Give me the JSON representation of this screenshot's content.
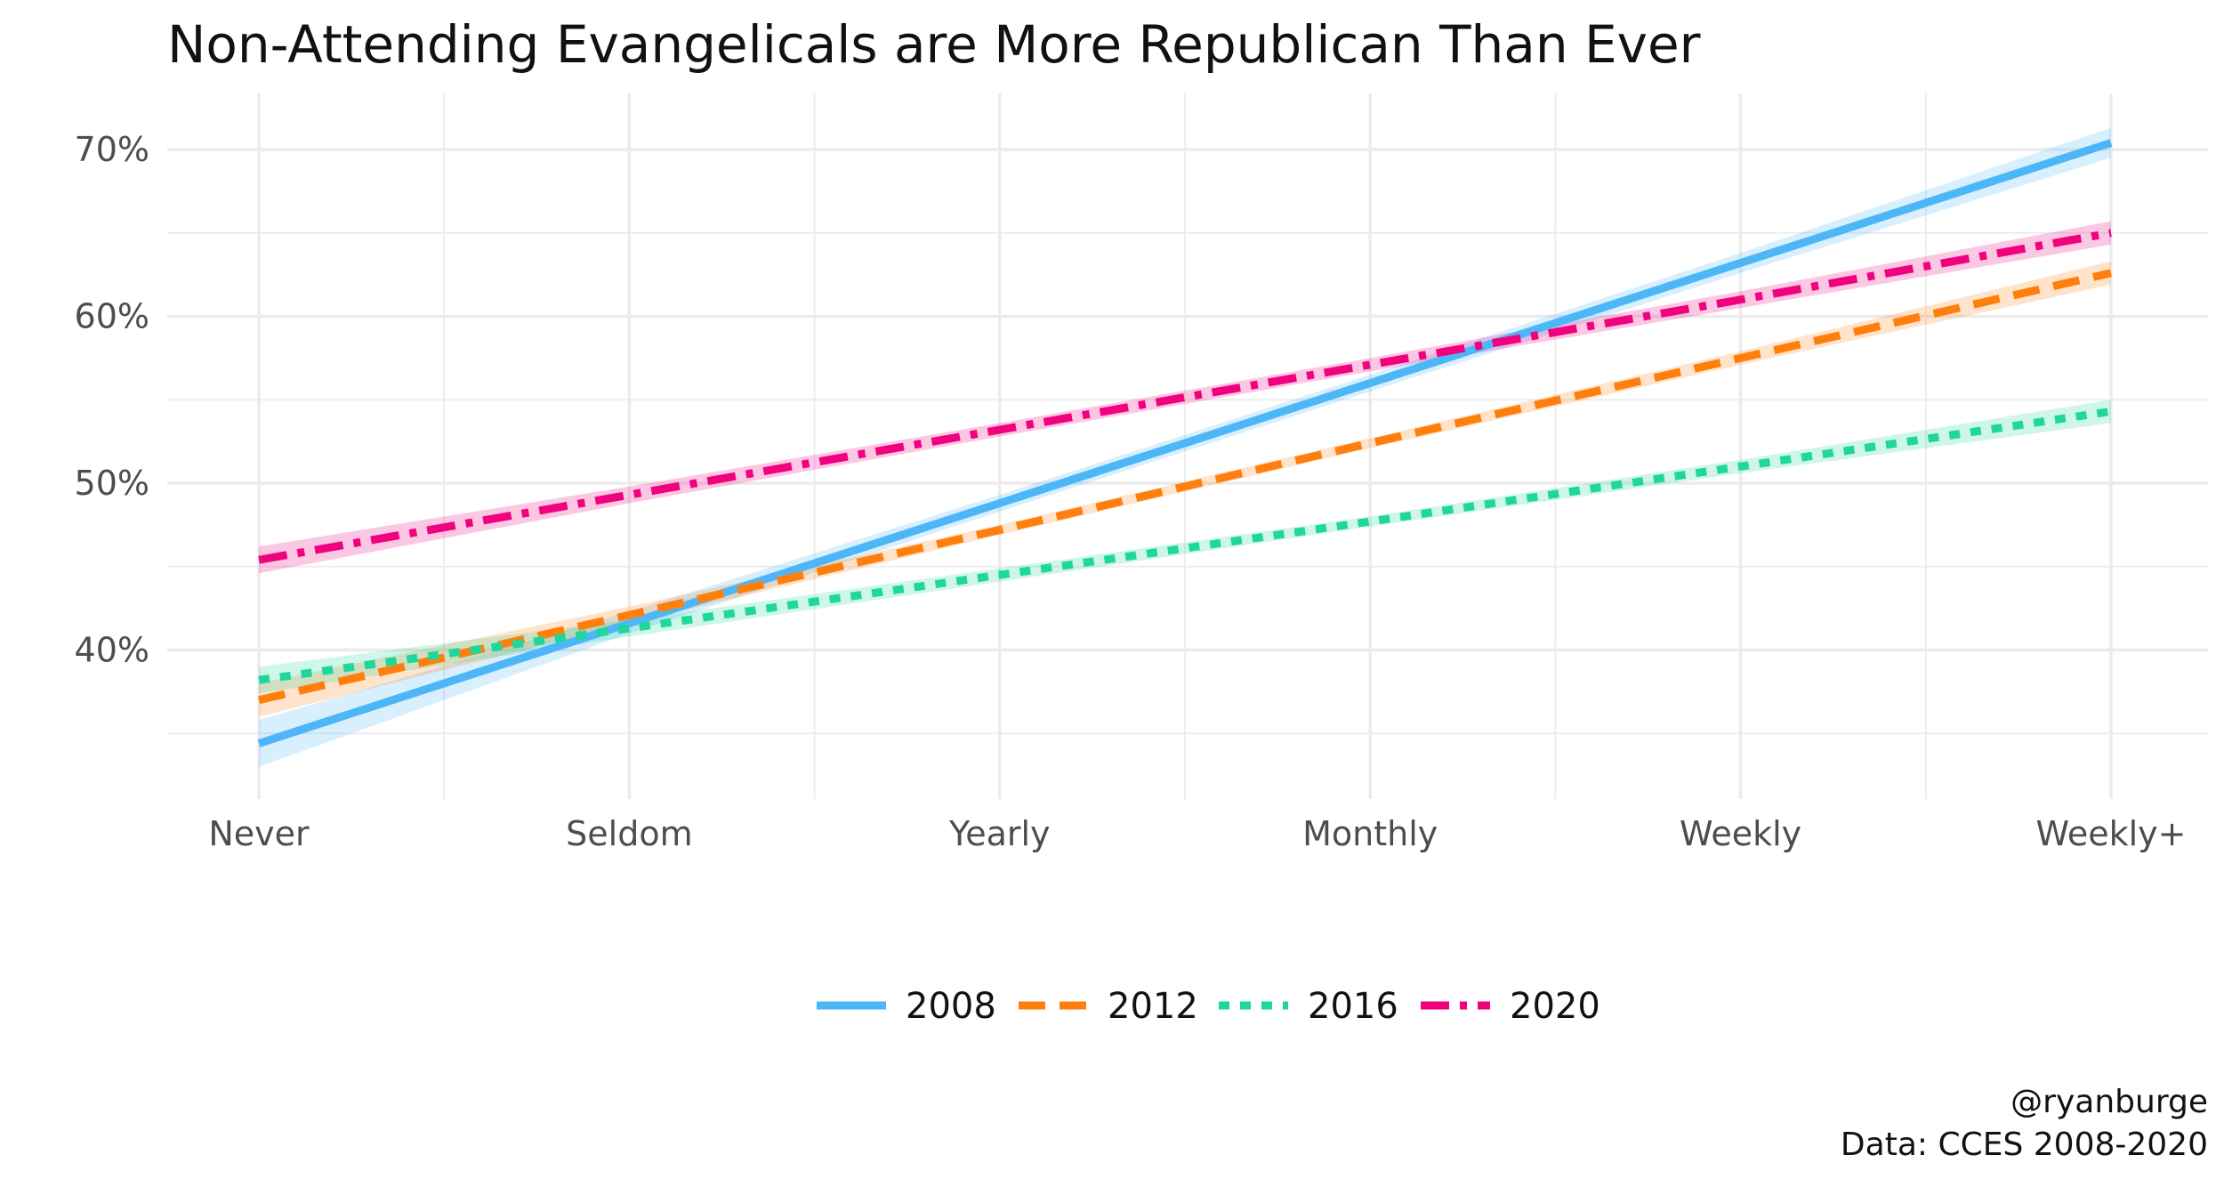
{
  "colors": {
    "2008": "#4DB6F6",
    "2012": "#FF7F0E",
    "2016": "#1FD79A",
    "2020": "#F0027F"
  },
  "chart_data": {
    "type": "line",
    "title": "Non-Attending Evangelicals are More Republican Than Ever",
    "xlabel": "",
    "ylabel": "",
    "categories": [
      "Never",
      "Seldom",
      "Yearly",
      "Monthly",
      "Weekly",
      "Weekly+"
    ],
    "y_ticks": [
      0.4,
      0.5,
      0.6,
      0.7
    ],
    "y_tick_labels": [
      "40%",
      "50%",
      "60%",
      "70%"
    ],
    "ylim": [
      0.312,
      0.731
    ],
    "grid": true,
    "legend_position": "bottom",
    "series": [
      {
        "name": "2008",
        "linestyle": "solid",
        "values": [
          0.344,
          0.416,
          0.488,
          0.56,
          0.632,
          0.704
        ],
        "ci_lower": [
          0.33,
          0.41,
          0.483,
          0.555,
          0.626,
          0.695
        ],
        "ci_upper": [
          0.358,
          0.423,
          0.493,
          0.565,
          0.638,
          0.713
        ]
      },
      {
        "name": "2012",
        "linestyle": "longdash",
        "values": [
          0.37,
          0.421,
          0.472,
          0.524,
          0.575,
          0.626
        ],
        "ci_lower": [
          0.36,
          0.416,
          0.469,
          0.521,
          0.571,
          0.619
        ],
        "ci_upper": [
          0.38,
          0.426,
          0.475,
          0.527,
          0.579,
          0.633
        ]
      },
      {
        "name": "2016",
        "linestyle": "dashed",
        "values": [
          0.382,
          0.413,
          0.445,
          0.477,
          0.51,
          0.543
        ],
        "ci_lower": [
          0.374,
          0.408,
          0.441,
          0.474,
          0.506,
          0.536
        ],
        "ci_upper": [
          0.39,
          0.418,
          0.449,
          0.48,
          0.514,
          0.55
        ]
      },
      {
        "name": "2020",
        "linestyle": "dotdash",
        "values": [
          0.454,
          0.493,
          0.532,
          0.571,
          0.61,
          0.65
        ],
        "ci_lower": [
          0.446,
          0.488,
          0.528,
          0.567,
          0.605,
          0.643
        ],
        "ci_upper": [
          0.462,
          0.498,
          0.536,
          0.575,
          0.615,
          0.657
        ]
      }
    ]
  },
  "caption": {
    "line1": "@ryanburge",
    "line2": "Data: CCES 2008-2020"
  }
}
